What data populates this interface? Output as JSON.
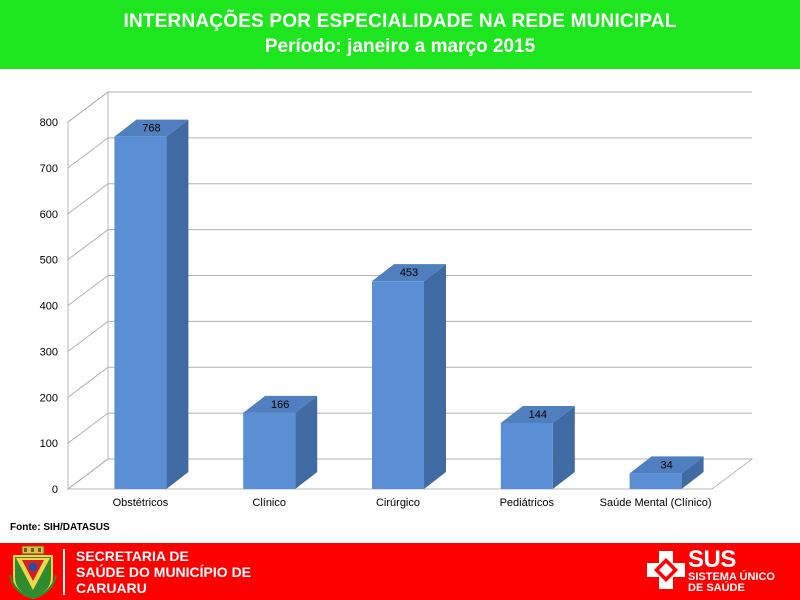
{
  "header": {
    "title": "INTERNAÇÕES POR ESPECIALIDADE NA REDE MUNICIPAL",
    "subtitle": "Período: janeiro a março 2015",
    "background": "#1ee61e"
  },
  "chart_data": {
    "type": "bar",
    "style": "3d",
    "categories": [
      "Obstétricos",
      "Clínico",
      "Cirúrgico",
      "Pediátricos",
      "Saúde Mental (Clínico)"
    ],
    "values": [
      768,
      166,
      453,
      144,
      34
    ],
    "data_labels": [
      "768",
      "166",
      "453",
      "144",
      "34"
    ],
    "ylim": [
      0,
      800
    ],
    "yticks": [
      0,
      100,
      200,
      300,
      400,
      500,
      600,
      700,
      800
    ],
    "grid": true,
    "bar_color": "#4f81bd"
  },
  "source_note": "Fonte: SIH/DATASUS",
  "footer": {
    "background": "#ff0000",
    "secretaria_lines": [
      "SECRETARIA DE",
      "SAÚDE DO MUNICÍPIO DE",
      "CARUARU"
    ],
    "sus_title": "SUS",
    "sus_subtitle_lines": [
      "SISTEMA ÚNICO",
      "DE SAÚDE"
    ],
    "crest_icon": "municipal-crest-icon",
    "sus_icon": "sus-cross-icon"
  }
}
